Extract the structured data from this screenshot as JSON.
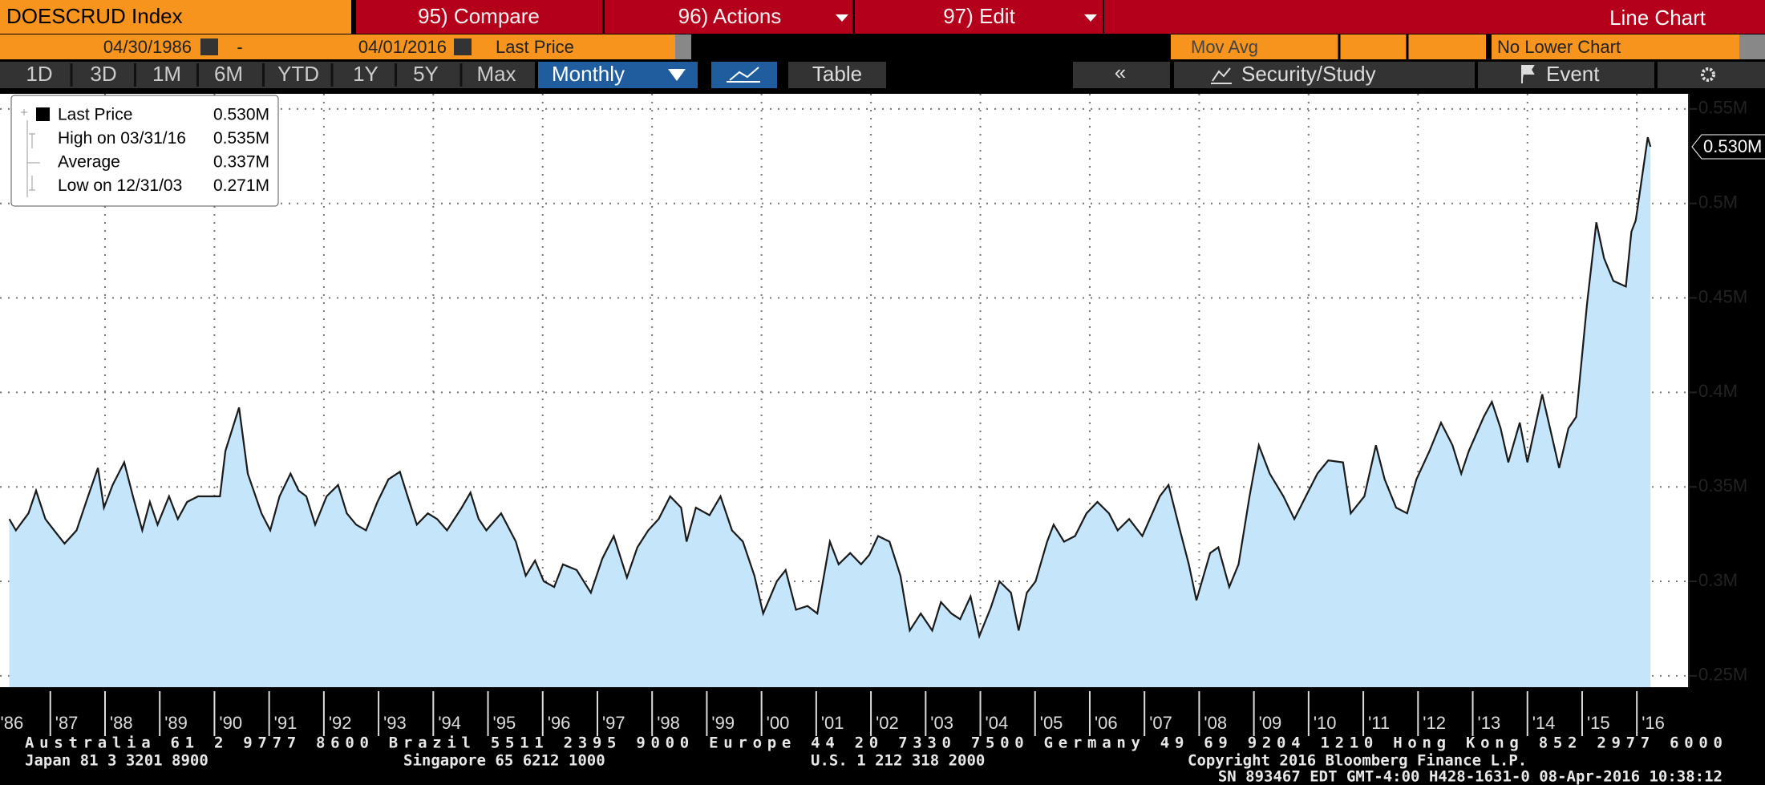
{
  "toolbar": {
    "security": "DOESCRUD Index",
    "menus": [
      "95) Compare",
      "96) Actions",
      "97) Edit"
    ],
    "view": "Line Chart",
    "start_date": "04/30/1986",
    "separator": "-",
    "end_date": "04/01/2016",
    "field": "Last Price",
    "mov_avg": "Mov Avg",
    "lower_chart": "No Lower Chart",
    "periods": [
      "1D",
      "3D",
      "1M",
      "6M",
      "YTD",
      "1Y",
      "5Y",
      "Max"
    ],
    "frequency": "Monthly",
    "table": "Table",
    "back": "«",
    "study": "Security/Study",
    "event": "Event"
  },
  "legend": {
    "rows": [
      {
        "label": "Last Price",
        "value": "0.530M"
      },
      {
        "label": "High on 03/31/16",
        "value": "0.535M"
      },
      {
        "label": "Average",
        "value": "0.337M"
      },
      {
        "label": "Low on 12/31/03",
        "value": "0.271M"
      }
    ]
  },
  "chart_data": {
    "type": "area",
    "name": "Last Price",
    "color": "#1a1a1a",
    "fill": "#c5e5fb",
    "grid": true,
    "last_value_label": "0.530M",
    "x": [
      1986.25,
      1986.37,
      1986.6,
      1986.74,
      1986.91,
      1987.07,
      1987.26,
      1987.48,
      1987.69,
      1987.87,
      1987.98,
      1988.14,
      1988.35,
      1988.51,
      1988.68,
      1988.82,
      1988.96,
      1989.17,
      1989.33,
      1989.5,
      1989.7,
      1989.89,
      1990.1,
      1990.2,
      1990.45,
      1990.61,
      1990.86,
      1991.02,
      1991.19,
      1991.39,
      1991.54,
      1991.68,
      1991.84,
      1992.05,
      1992.26,
      1992.42,
      1992.59,
      1992.77,
      1992.98,
      1993.18,
      1993.39,
      1993.53,
      1993.7,
      1993.9,
      1994.07,
      1994.25,
      1994.52,
      1994.68,
      1994.83,
      1994.97,
      1995.24,
      1995.51,
      1995.69,
      1995.86,
      1996.02,
      1996.21,
      1996.37,
      1996.62,
      1996.88,
      1997.09,
      1997.3,
      1997.54,
      1997.73,
      1997.93,
      1998.12,
      1998.33,
      1998.53,
      1998.63,
      1998.8,
      1999.05,
      1999.25,
      1999.46,
      1999.66,
      1999.87,
      2000.03,
      2000.28,
      2000.44,
      2000.63,
      2000.84,
      2001.02,
      2001.25,
      2001.41,
      2001.62,
      2001.82,
      2001.97,
      2002.13,
      2002.34,
      2002.54,
      2002.71,
      2002.91,
      2003.12,
      2003.28,
      2003.47,
      2003.63,
      2003.82,
      2003.98,
      2004.19,
      2004.35,
      2004.56,
      2004.7,
      2004.85,
      2005.01,
      2005.22,
      2005.34,
      2005.53,
      2005.73,
      2005.94,
      2006.14,
      2006.35,
      2006.51,
      2006.72,
      2006.96,
      2007.28,
      2007.44,
      2007.65,
      2007.81,
      2007.95,
      2008.2,
      2008.35,
      2008.55,
      2008.72,
      2008.92,
      2009.09,
      2009.29,
      2009.54,
      2009.74,
      2009.95,
      2010.16,
      2010.36,
      2010.63,
      2010.77,
      2011.02,
      2011.23,
      2011.39,
      2011.6,
      2011.8,
      2011.97,
      2012.21,
      2012.42,
      2012.63,
      2012.79,
      2012.93,
      2013.2,
      2013.35,
      2013.51,
      2013.65,
      2013.86,
      2014.0,
      2014.27,
      2014.58,
      2014.75,
      2014.89,
      2015.09,
      2015.26,
      2015.4,
      2015.57,
      2015.8,
      2015.9,
      2015.98,
      2016.1,
      2016.2,
      2016.25
    ],
    "values": [
      0.333,
      0.327,
      0.336,
      0.348,
      0.333,
      0.327,
      0.32,
      0.327,
      0.345,
      0.36,
      0.339,
      0.351,
      0.363,
      0.345,
      0.327,
      0.342,
      0.33,
      0.345,
      0.333,
      0.342,
      0.345,
      0.345,
      0.345,
      0.369,
      0.392,
      0.357,
      0.336,
      0.327,
      0.345,
      0.357,
      0.348,
      0.345,
      0.33,
      0.345,
      0.351,
      0.336,
      0.33,
      0.327,
      0.342,
      0.354,
      0.358,
      0.345,
      0.33,
      0.336,
      0.333,
      0.327,
      0.339,
      0.347,
      0.333,
      0.327,
      0.336,
      0.321,
      0.303,
      0.311,
      0.3,
      0.297,
      0.309,
      0.306,
      0.294,
      0.312,
      0.324,
      0.302,
      0.318,
      0.327,
      0.333,
      0.345,
      0.339,
      0.321,
      0.339,
      0.335,
      0.345,
      0.327,
      0.321,
      0.303,
      0.283,
      0.3,
      0.306,
      0.285,
      0.287,
      0.283,
      0.321,
      0.309,
      0.315,
      0.309,
      0.314,
      0.324,
      0.321,
      0.303,
      0.274,
      0.283,
      0.274,
      0.289,
      0.283,
      0.28,
      0.292,
      0.271,
      0.286,
      0.3,
      0.294,
      0.274,
      0.294,
      0.3,
      0.321,
      0.33,
      0.321,
      0.324,
      0.336,
      0.342,
      0.336,
      0.327,
      0.333,
      0.324,
      0.345,
      0.351,
      0.327,
      0.309,
      0.29,
      0.315,
      0.318,
      0.297,
      0.309,
      0.345,
      0.372,
      0.357,
      0.345,
      0.333,
      0.345,
      0.357,
      0.364,
      0.363,
      0.336,
      0.345,
      0.372,
      0.354,
      0.339,
      0.336,
      0.354,
      0.369,
      0.384,
      0.372,
      0.357,
      0.369,
      0.387,
      0.395,
      0.381,
      0.363,
      0.384,
      0.363,
      0.399,
      0.36,
      0.381,
      0.387,
      0.447,
      0.49,
      0.471,
      0.459,
      0.456,
      0.485,
      0.491,
      0.515,
      0.535,
      0.53
    ],
    "xlim": [
      1986.08,
      2016.95
    ],
    "xticks": [
      {
        "value": 1986,
        "label": "'86"
      },
      {
        "value": 1987,
        "label": "'87"
      },
      {
        "value": 1988,
        "label": "'88"
      },
      {
        "value": 1989,
        "label": "'89"
      },
      {
        "value": 1990,
        "label": "'90"
      },
      {
        "value": 1991,
        "label": "'91"
      },
      {
        "value": 1992,
        "label": "'92"
      },
      {
        "value": 1993,
        "label": "'93"
      },
      {
        "value": 1994,
        "label": "'94"
      },
      {
        "value": 1995,
        "label": "'95"
      },
      {
        "value": 1996,
        "label": "'96"
      },
      {
        "value": 1997,
        "label": "'97"
      },
      {
        "value": 1998,
        "label": "'98"
      },
      {
        "value": 1999,
        "label": "'99"
      },
      {
        "value": 2000,
        "label": "'00"
      },
      {
        "value": 2001,
        "label": "'01"
      },
      {
        "value": 2002,
        "label": "'02"
      },
      {
        "value": 2003,
        "label": "'03"
      },
      {
        "value": 2004,
        "label": "'04"
      },
      {
        "value": 2005,
        "label": "'05"
      },
      {
        "value": 2006,
        "label": "'06"
      },
      {
        "value": 2007,
        "label": "'07"
      },
      {
        "value": 2008,
        "label": "'08"
      },
      {
        "value": 2009,
        "label": "'09"
      },
      {
        "value": 2010,
        "label": "'10"
      },
      {
        "value": 2011,
        "label": "'11"
      },
      {
        "value": 2012,
        "label": "'12"
      },
      {
        "value": 2013,
        "label": "'13"
      },
      {
        "value": 2014,
        "label": "'14"
      },
      {
        "value": 2015,
        "label": "'15"
      },
      {
        "value": 2016,
        "label": "'16"
      }
    ],
    "ylim": [
      0.244,
      0.558
    ],
    "yticks": [
      {
        "value": 0.25,
        "label": "0.25M"
      },
      {
        "value": 0.3,
        "label": "0.3M"
      },
      {
        "value": 0.35,
        "label": "0.35M"
      },
      {
        "value": 0.4,
        "label": "0.4M"
      },
      {
        "value": 0.45,
        "label": "0.45M"
      },
      {
        "value": 0.5,
        "label": "0.5M"
      },
      {
        "value": 0.55,
        "label": "0.55M"
      }
    ]
  },
  "footer": {
    "line1": "Australia 61 2 9777 8600 Brazil 5511 2395 9000 Europe 44 20 7330 7500 Germany 49 69 9204 1210 Hong Kong 852 2977 6000",
    "line2": [
      "Japan 81 3 3201 8900",
      "Singapore 65 6212 1000",
      "U.S. 1 212 318 2000",
      "Copyright 2016 Bloomberg Finance L.P."
    ],
    "line3": "SN 893467 EDT  GMT-4:00 H428-1631-0 08-Apr-2016 10:38:12"
  }
}
